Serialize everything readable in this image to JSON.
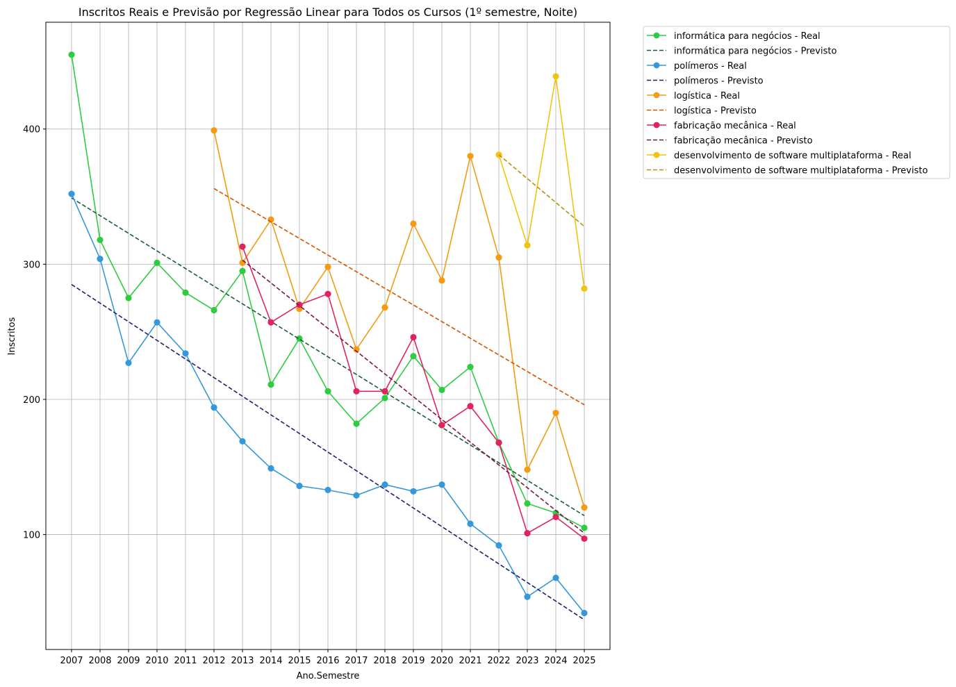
{
  "chart_data": {
    "type": "line",
    "title": "Inscritos Reais e Previsão por Regressão Linear para Todos os Cursos (1º semestre, Noite)",
    "xlabel": "Ano.Semestre",
    "ylabel": "Inscritos",
    "categories": [
      "2007",
      "2008",
      "2009",
      "2010",
      "2011",
      "2012",
      "2013",
      "2014",
      "2015",
      "2016",
      "2017",
      "2018",
      "2019",
      "2020",
      "2021",
      "2022",
      "2023",
      "2024",
      "2025"
    ],
    "ylim": [
      15,
      479
    ],
    "yticks": [
      100,
      200,
      300,
      400
    ],
    "grid": true,
    "legend_position": "outside-right",
    "series": [
      {
        "name": "informática para negócios - Real",
        "color": "#2ecc40",
        "style": "solid-marker",
        "x": [
          "2007",
          "2008",
          "2009",
          "2010",
          "2011",
          "2012",
          "2013",
          "2014",
          "2015",
          "2016",
          "2017",
          "2018",
          "2019",
          "2020",
          "2021",
          "2022",
          "2023",
          "2024",
          "2025"
        ],
        "values": [
          455,
          318,
          275,
          301,
          279,
          266,
          295,
          211,
          245,
          206,
          182,
          201,
          232,
          207,
          224,
          168,
          123,
          116,
          105
        ]
      },
      {
        "name": "informática para negócios - Previsto",
        "color": "#1a5c36",
        "style": "dashed",
        "x": [
          "2007",
          "2025"
        ],
        "values": [
          349,
          114
        ]
      },
      {
        "name": "polímeros - Real",
        "color": "#3498db",
        "style": "solid-marker",
        "x": [
          "2007",
          "2008",
          "2009",
          "2010",
          "2011",
          "2012",
          "2013",
          "2014",
          "2015",
          "2016",
          "2017",
          "2018",
          "2019",
          "2020",
          "2021",
          "2022",
          "2023",
          "2024",
          "2025"
        ],
        "values": [
          352,
          304,
          227,
          257,
          234,
          194,
          169,
          149,
          136,
          133,
          129,
          137,
          132,
          137,
          108,
          92,
          54,
          68,
          42
        ]
      },
      {
        "name": "polímeros - Previsto",
        "color": "#1f1f6e",
        "style": "dashed",
        "x": [
          "2007",
          "2025"
        ],
        "values": [
          285,
          37
        ]
      },
      {
        "name": "logística - Real",
        "color": "#f39c12",
        "style": "solid-marker",
        "x": [
          "2012",
          "2013",
          "2014",
          "2015",
          "2016",
          "2017",
          "2018",
          "2019",
          "2020",
          "2021",
          "2022",
          "2023",
          "2024",
          "2025"
        ],
        "values": [
          399,
          301,
          333,
          267,
          298,
          237,
          268,
          330,
          288,
          380,
          305,
          148,
          190,
          120
        ]
      },
      {
        "name": "logística - Previsto",
        "color": "#d35400",
        "style": "dashed",
        "x": [
          "2012",
          "2025"
        ],
        "values": [
          356,
          196
        ]
      },
      {
        "name": "fabricação mecânica - Real",
        "color": "#e0245e",
        "style": "solid-marker",
        "x": [
          "2013",
          "2014",
          "2015",
          "2016",
          "2017",
          "2018",
          "2019",
          "2020",
          "2021",
          "2022",
          "2023",
          "2024",
          "2025"
        ],
        "values": [
          313,
          257,
          270,
          278,
          206,
          206,
          246,
          181,
          195,
          168,
          101,
          113,
          97
        ]
      },
      {
        "name": "fabricação mecânica - Previsto",
        "color": "#7b1547",
        "style": "dashed",
        "x": [
          "2013",
          "2025"
        ],
        "values": [
          303,
          101
        ]
      },
      {
        "name": "desenvolvimento de software multiplataforma - Real",
        "color": "#f1c40f",
        "style": "solid-marker",
        "x": [
          "2022",
          "2023",
          "2024",
          "2025"
        ],
        "values": [
          381,
          314,
          439,
          282
        ]
      },
      {
        "name": "desenvolvimento de software multiplataforma - Previsto",
        "color": "#b8920f",
        "style": "dashed",
        "x": [
          "2022",
          "2025"
        ],
        "values": [
          381,
          328
        ]
      }
    ]
  }
}
